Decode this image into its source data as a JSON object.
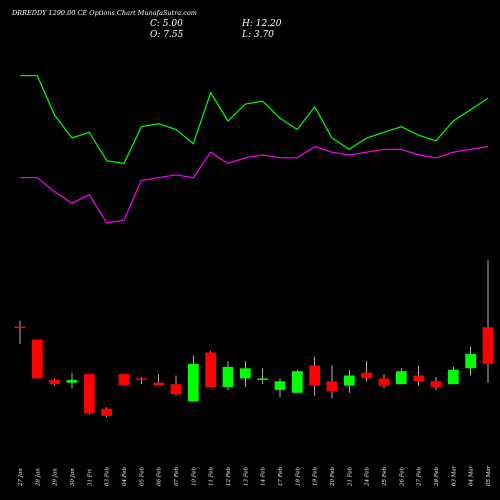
{
  "chart_data": {
    "type": "candlestick",
    "title": "DRREDDY 1290.00 CE Options Chart MunafaSutra.com",
    "ohlc_labels": {
      "close": "C: 5.00",
      "open": "O: 7.55",
      "high": "H: 12.20",
      "low": "L: 3.70"
    },
    "colors": {
      "up": "#00ff00",
      "down": "#ff0000",
      "neutral": "#ffffff",
      "wick": "#ffffff",
      "line1": "#00ff00",
      "line2": "#ff00ff",
      "background": "#000000",
      "text": "#ffffff"
    },
    "categories": [
      "27 Jan",
      "28 Jan",
      "29 Jan",
      "30 Jan",
      "31 Fri",
      "03 Feb",
      "04 Feb",
      "05 Feb",
      "06 Feb",
      "07 Feb",
      "10 Feb",
      "11 Feb",
      "12 Feb",
      "13 Feb",
      "14 Feb",
      "17 Feb",
      "18 Feb",
      "19 Feb",
      "20 Feb",
      "21 Feb",
      "24 Feb",
      "25 Feb",
      "26 Feb",
      "27 Feb",
      "28 Feb",
      "03 Mar",
      "04 Mar",
      "05 Mar"
    ],
    "tick_labels": [
      "27 Jan",
      "28 Jan",
      "29 Jan",
      "30 Jan",
      "31 Fri",
      "03 Feb",
      "04 Feb",
      "05 Feb",
      "06 Feb",
      "07 Feb",
      "10 Feb",
      "11 Feb",
      "12 Feb",
      "13 Feb",
      "14 Feb",
      "17 Feb",
      "18 Feb",
      "19 Feb",
      "20 Feb",
      "21 Feb",
      "24 Feb",
      "25 Feb",
      "26 Feb",
      "27 Feb",
      "28 Feb",
      "03 Mar",
      "04 Mar",
      "05 Mar"
    ],
    "candles": [
      {
        "open": 7.6,
        "high": 8.0,
        "low": 6.4,
        "close": 7.5,
        "dir": "down"
      },
      {
        "open": 6.7,
        "high": 6.7,
        "low": 4.0,
        "close": 4.0,
        "dir": "down"
      },
      {
        "open": 3.9,
        "high": 4.0,
        "low": 3.5,
        "close": 3.6,
        "dir": "down"
      },
      {
        "open": 3.7,
        "high": 4.4,
        "low": 3.3,
        "close": 3.9,
        "dir": "up"
      },
      {
        "open": 4.3,
        "high": 4.3,
        "low": 1.5,
        "close": 1.6,
        "dir": "down"
      },
      {
        "open": 1.9,
        "high": 2.0,
        "low": 1.3,
        "close": 1.4,
        "dir": "down"
      },
      {
        "open": 4.3,
        "high": 4.3,
        "low": 3.5,
        "close": 3.5,
        "dir": "down"
      },
      {
        "open": 4.0,
        "high": 4.1,
        "low": 3.6,
        "close": 3.9,
        "dir": "down"
      },
      {
        "open": 3.7,
        "high": 4.3,
        "low": 3.5,
        "close": 3.5,
        "dir": "down"
      },
      {
        "open": 3.6,
        "high": 4.2,
        "low": 2.8,
        "close": 2.9,
        "dir": "down"
      },
      {
        "open": 2.4,
        "high": 5.6,
        "low": 2.4,
        "close": 5.0,
        "dir": "up"
      },
      {
        "open": 5.8,
        "high": 5.9,
        "low": 3.4,
        "close": 3.4,
        "dir": "down"
      },
      {
        "open": 3.4,
        "high": 5.2,
        "low": 3.2,
        "close": 4.8,
        "dir": "up"
      },
      {
        "open": 4.0,
        "high": 5.2,
        "low": 3.4,
        "close": 4.7,
        "dir": "up"
      },
      {
        "open": 3.9,
        "high": 4.7,
        "low": 3.6,
        "close": 4.0,
        "dir": "up"
      },
      {
        "open": 3.2,
        "high": 4.0,
        "low": 2.7,
        "close": 3.8,
        "dir": "up"
      },
      {
        "open": 3.0,
        "high": 4.6,
        "low": 3.0,
        "close": 4.5,
        "dir": "up"
      },
      {
        "open": 4.9,
        "high": 5.5,
        "low": 2.8,
        "close": 3.5,
        "dir": "down"
      },
      {
        "open": 3.8,
        "high": 4.9,
        "low": 2.6,
        "close": 3.1,
        "dir": "down"
      },
      {
        "open": 3.5,
        "high": 4.6,
        "low": 3.0,
        "close": 4.2,
        "dir": "up"
      },
      {
        "open": 4.4,
        "high": 5.2,
        "low": 3.8,
        "close": 4.0,
        "dir": "down"
      },
      {
        "open": 4.0,
        "high": 4.3,
        "low": 3.3,
        "close": 3.5,
        "dir": "down"
      },
      {
        "open": 3.6,
        "high": 4.7,
        "low": 3.6,
        "close": 4.5,
        "dir": "up"
      },
      {
        "open": 4.2,
        "high": 4.9,
        "low": 3.5,
        "close": 3.8,
        "dir": "down"
      },
      {
        "open": 3.8,
        "high": 4.1,
        "low": 3.2,
        "close": 3.4,
        "dir": "down"
      },
      {
        "open": 3.6,
        "high": 4.8,
        "low": 3.6,
        "close": 4.6,
        "dir": "up"
      },
      {
        "open": 4.7,
        "high": 6.2,
        "low": 4.2,
        "close": 5.7,
        "dir": "up"
      },
      {
        "open": 7.55,
        "high": 12.2,
        "low": 3.7,
        "close": 5.0,
        "dir": "down"
      }
    ],
    "lines": [
      {
        "color": "#00ff00",
        "values": [
          8.9,
          8.9,
          8.2,
          7.8,
          7.9,
          7.4,
          7.35,
          8.0,
          8.05,
          7.95,
          7.7,
          8.6,
          8.1,
          8.4,
          8.45,
          8.15,
          7.95,
          8.35,
          7.8,
          7.6,
          7.8,
          7.9,
          8.0,
          7.85,
          7.75,
          8.1,
          8.3,
          8.5
        ]
      },
      {
        "color": "#ff00ff",
        "values": [
          7.1,
          7.1,
          6.85,
          6.65,
          6.8,
          6.3,
          6.35,
          7.05,
          7.1,
          7.15,
          7.1,
          7.55,
          7.35,
          7.45,
          7.5,
          7.45,
          7.45,
          7.65,
          7.55,
          7.5,
          7.55,
          7.6,
          7.6,
          7.5,
          7.45,
          7.55,
          7.6,
          7.65
        ]
      }
    ]
  }
}
